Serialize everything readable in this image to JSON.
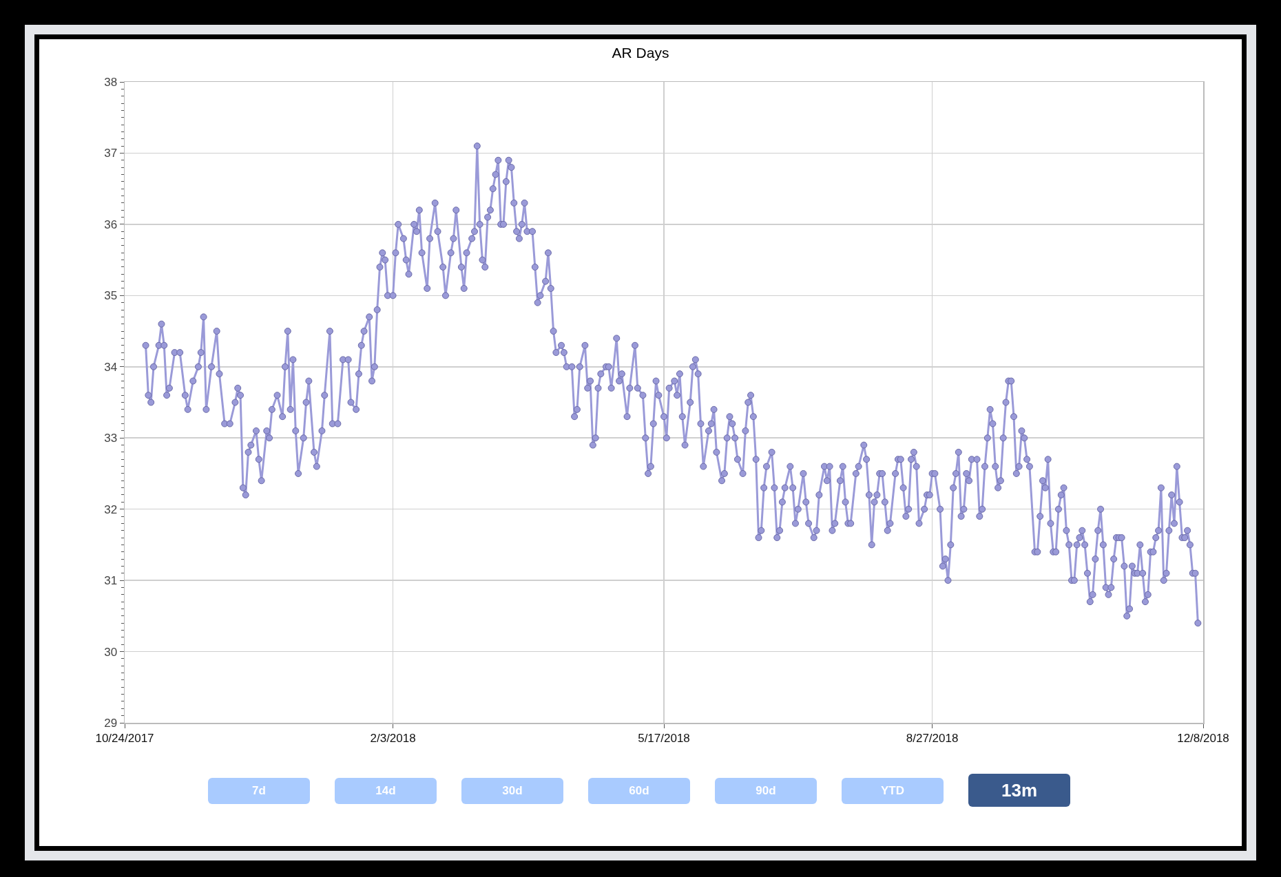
{
  "chart_data": {
    "type": "line",
    "title": "AR Days",
    "color": "#9a9ad8",
    "marker": "circle",
    "grid": true,
    "xlim": [
      "2017-10-24",
      "2018-12-08"
    ],
    "xticks": [
      {
        "value": "2017-10-24",
        "label": "10/24/2017"
      },
      {
        "value": "2018-02-03",
        "label": "2/3/2018"
      },
      {
        "value": "2018-05-17",
        "label": "5/17/2018"
      },
      {
        "value": "2018-08-27",
        "label": "8/27/2018"
      },
      {
        "value": "2018-12-08",
        "label": "12/8/2018"
      }
    ],
    "ylim": [
      29,
      38
    ],
    "yticks": [
      29,
      30,
      31,
      32,
      33,
      34,
      35,
      36,
      37,
      38
    ],
    "annotations": [
      "7d",
      "14d",
      "30d",
      "60d",
      "90d",
      "YTD",
      "13m"
    ],
    "x": [
      "2017-11-01",
      "2017-11-02",
      "2017-11-03",
      "2017-11-04",
      "2017-11-06",
      "2017-11-07",
      "2017-11-08",
      "2017-11-09",
      "2017-11-10",
      "2017-11-12",
      "2017-11-14",
      "2017-11-16",
      "2017-11-17",
      "2017-11-19",
      "2017-11-21",
      "2017-11-22",
      "2017-11-23",
      "2017-11-24",
      "2017-11-26",
      "2017-11-28",
      "2017-11-29",
      "2017-12-01",
      "2017-12-03",
      "2017-12-05",
      "2017-12-06",
      "2017-12-07",
      "2017-12-08",
      "2017-12-09",
      "2017-12-10",
      "2017-12-11",
      "2017-12-13",
      "2017-12-14",
      "2017-12-15",
      "2017-12-17",
      "2017-12-18",
      "2017-12-19",
      "2017-12-21",
      "2017-12-23",
      "2017-12-24",
      "2017-12-25",
      "2017-12-26",
      "2017-12-27",
      "2017-12-28",
      "2017-12-29",
      "2017-12-31",
      "2018-01-01",
      "2018-01-02",
      "2018-01-04",
      "2018-01-05",
      "2018-01-07",
      "2018-01-08",
      "2018-01-10",
      "2018-01-11",
      "2018-01-13",
      "2018-01-15",
      "2018-01-17",
      "2018-01-18",
      "2018-01-20",
      "2018-01-21",
      "2018-01-22",
      "2018-01-23",
      "2018-01-25",
      "2018-01-26",
      "2018-01-27",
      "2018-01-28",
      "2018-01-29",
      "2018-01-30",
      "2018-01-31",
      "2018-02-01",
      "2018-02-03",
      "2018-02-04",
      "2018-02-05",
      "2018-02-07",
      "2018-02-08",
      "2018-02-09",
      "2018-02-11",
      "2018-02-12",
      "2018-02-13",
      "2018-02-14",
      "2018-02-16",
      "2018-02-17",
      "2018-02-19",
      "2018-02-20",
      "2018-02-22",
      "2018-02-23",
      "2018-02-25",
      "2018-02-26",
      "2018-02-27",
      "2018-03-01",
      "2018-03-02",
      "2018-03-03",
      "2018-03-05",
      "2018-03-06",
      "2018-03-07",
      "2018-03-08",
      "2018-03-09",
      "2018-03-10",
      "2018-03-11",
      "2018-03-12",
      "2018-03-13",
      "2018-03-14",
      "2018-03-15",
      "2018-03-16",
      "2018-03-17",
      "2018-03-18",
      "2018-03-19",
      "2018-03-20",
      "2018-03-21",
      "2018-03-22",
      "2018-03-23",
      "2018-03-24",
      "2018-03-25",
      "2018-03-26",
      "2018-03-28",
      "2018-03-29",
      "2018-03-30",
      "2018-03-31",
      "2018-04-02",
      "2018-04-03",
      "2018-04-04",
      "2018-04-05",
      "2018-04-06",
      "2018-04-08",
      "2018-04-09",
      "2018-04-10",
      "2018-04-12",
      "2018-04-13",
      "2018-04-14",
      "2018-04-15",
      "2018-04-17",
      "2018-04-18",
      "2018-04-19",
      "2018-04-20",
      "2018-04-21",
      "2018-04-22",
      "2018-04-23",
      "2018-04-25",
      "2018-04-26",
      "2018-04-27",
      "2018-04-29",
      "2018-04-30",
      "2018-05-01",
      "2018-05-03",
      "2018-05-04",
      "2018-05-06",
      "2018-05-07",
      "2018-05-09",
      "2018-05-10",
      "2018-05-11",
      "2018-05-12",
      "2018-05-13",
      "2018-05-14",
      "2018-05-15",
      "2018-05-17",
      "2018-05-18",
      "2018-05-19",
      "2018-05-21",
      "2018-05-22",
      "2018-05-23",
      "2018-05-24",
      "2018-05-25",
      "2018-05-27",
      "2018-05-28",
      "2018-05-29",
      "2018-05-30",
      "2018-05-31",
      "2018-06-01",
      "2018-06-03",
      "2018-06-04",
      "2018-06-05",
      "2018-06-06",
      "2018-06-08",
      "2018-06-09",
      "2018-06-10",
      "2018-06-11",
      "2018-06-12",
      "2018-06-13",
      "2018-06-14",
      "2018-06-16",
      "2018-06-17",
      "2018-06-18",
      "2018-06-19",
      "2018-06-20",
      "2018-06-21",
      "2018-06-22",
      "2018-06-23",
      "2018-06-24",
      "2018-06-25",
      "2018-06-27",
      "2018-06-28",
      "2018-06-29",
      "2018-06-30",
      "2018-07-01",
      "2018-07-02",
      "2018-07-04",
      "2018-07-05",
      "2018-07-06",
      "2018-07-07",
      "2018-07-09",
      "2018-07-10",
      "2018-07-11",
      "2018-07-13",
      "2018-07-14",
      "2018-07-15",
      "2018-07-17",
      "2018-07-18",
      "2018-07-19",
      "2018-07-20",
      "2018-07-21",
      "2018-07-23",
      "2018-07-24",
      "2018-07-25",
      "2018-07-26",
      "2018-07-27",
      "2018-07-29",
      "2018-07-30",
      "2018-08-01",
      "2018-08-02",
      "2018-08-03",
      "2018-08-04",
      "2018-08-05",
      "2018-08-06",
      "2018-08-07",
      "2018-08-08",
      "2018-08-09",
      "2018-08-10",
      "2018-08-11",
      "2018-08-13",
      "2018-08-14",
      "2018-08-15",
      "2018-08-16",
      "2018-08-17",
      "2018-08-18",
      "2018-08-19",
      "2018-08-20",
      "2018-08-21",
      "2018-08-22",
      "2018-08-24",
      "2018-08-25",
      "2018-08-26",
      "2018-08-27",
      "2018-08-28",
      "2018-08-30",
      "2018-08-31",
      "2018-09-01",
      "2018-09-02",
      "2018-09-03",
      "2018-09-04",
      "2018-09-05",
      "2018-09-06",
      "2018-09-07",
      "2018-09-08",
      "2018-09-09",
      "2018-09-10",
      "2018-09-11",
      "2018-09-13",
      "2018-09-14",
      "2018-09-15",
      "2018-09-16",
      "2018-09-17",
      "2018-09-18",
      "2018-09-19",
      "2018-09-20",
      "2018-09-21",
      "2018-09-22",
      "2018-09-23",
      "2018-09-24",
      "2018-09-25",
      "2018-09-26",
      "2018-09-27",
      "2018-09-28",
      "2018-09-29",
      "2018-09-30",
      "2018-10-01",
      "2018-10-02",
      "2018-10-03",
      "2018-10-05",
      "2018-10-06",
      "2018-10-07",
      "2018-10-08",
      "2018-10-09",
      "2018-10-10",
      "2018-10-11",
      "2018-10-12",
      "2018-10-13",
      "2018-10-14",
      "2018-10-15",
      "2018-10-16",
      "2018-10-17",
      "2018-10-18",
      "2018-10-19",
      "2018-10-20",
      "2018-10-21",
      "2018-10-22",
      "2018-10-23",
      "2018-10-24",
      "2018-10-25",
      "2018-10-26",
      "2018-10-27",
      "2018-10-28",
      "2018-10-29",
      "2018-10-30",
      "2018-10-31",
      "2018-11-01",
      "2018-11-02",
      "2018-11-03",
      "2018-11-04",
      "2018-11-05",
      "2018-11-06",
      "2018-11-07",
      "2018-11-08",
      "2018-11-09",
      "2018-11-10",
      "2018-11-11",
      "2018-11-12",
      "2018-11-13",
      "2018-11-14",
      "2018-11-15",
      "2018-11-16",
      "2018-11-17",
      "2018-11-18",
      "2018-11-19",
      "2018-11-20",
      "2018-11-21",
      "2018-11-22",
      "2018-11-23",
      "2018-11-24",
      "2018-11-25",
      "2018-11-26",
      "2018-11-27",
      "2018-11-28",
      "2018-11-29",
      "2018-11-30",
      "2018-12-01",
      "2018-12-02",
      "2018-12-03",
      "2018-12-04",
      "2018-12-05",
      "2018-12-06"
    ],
    "values": [
      34.3,
      33.6,
      33.5,
      34.0,
      34.3,
      34.6,
      34.3,
      33.6,
      33.7,
      34.2,
      34.2,
      33.6,
      33.4,
      33.8,
      34.0,
      34.2,
      34.7,
      33.4,
      34.0,
      34.5,
      33.9,
      33.2,
      33.2,
      33.5,
      33.7,
      33.6,
      32.3,
      32.2,
      32.8,
      32.9,
      33.1,
      32.7,
      32.4,
      33.1,
      33.0,
      33.4,
      33.6,
      33.3,
      34.0,
      34.5,
      33.4,
      34.1,
      33.1,
      32.5,
      33.0,
      33.5,
      33.8,
      32.8,
      32.6,
      33.1,
      33.6,
      34.5,
      33.2,
      33.2,
      34.1,
      34.1,
      33.5,
      33.4,
      33.9,
      34.3,
      34.5,
      34.7,
      33.8,
      34.0,
      34.8,
      35.4,
      35.6,
      35.5,
      35.0,
      35.0,
      35.6,
      36.0,
      35.8,
      35.5,
      35.3,
      36.0,
      35.9,
      36.2,
      35.6,
      35.1,
      35.8,
      36.3,
      35.9,
      35.4,
      35.0,
      35.6,
      35.8,
      36.2,
      35.4,
      35.1,
      35.6,
      35.8,
      35.9,
      37.1,
      36.0,
      35.5,
      35.4,
      36.1,
      36.2,
      36.5,
      36.7,
      36.9,
      36.0,
      36.0,
      36.6,
      36.9,
      36.8,
      36.3,
      35.9,
      35.8,
      36.0,
      36.3,
      35.9,
      35.9,
      35.4,
      34.9,
      35.0,
      35.2,
      35.6,
      35.1,
      34.5,
      34.2,
      34.3,
      34.2,
      34.0,
      34.0,
      33.3,
      33.4,
      34.0,
      34.3,
      33.7,
      33.8,
      32.9,
      33.0,
      33.7,
      33.9,
      34.0,
      34.0,
      33.7,
      34.4,
      33.8,
      33.9,
      33.3,
      33.7,
      34.3,
      33.7,
      33.6,
      33.0,
      32.5,
      32.6,
      33.2,
      33.8,
      33.6,
      33.3,
      33.0,
      33.7,
      33.8,
      33.6,
      33.9,
      33.3,
      32.9,
      33.5,
      34.0,
      34.1,
      33.9,
      33.2,
      32.6,
      33.1,
      33.2,
      33.4,
      32.8,
      32.4,
      32.5,
      33.0,
      33.3,
      33.2,
      33.0,
      32.7,
      32.5,
      33.1,
      33.5,
      33.6,
      33.3,
      32.7,
      31.6,
      31.7,
      32.3,
      32.6,
      32.8,
      32.3,
      31.6,
      31.7,
      32.1,
      32.3,
      32.6,
      32.3,
      31.8,
      32.0,
      32.5,
      32.1,
      31.8,
      31.6,
      31.7,
      32.2,
      32.6,
      32.4,
      32.6,
      31.7,
      31.8,
      32.4,
      32.6,
      32.1,
      31.8,
      31.8,
      32.5,
      32.6,
      32.9,
      32.7,
      32.2,
      31.5,
      32.1,
      32.2,
      32.5,
      32.5,
      32.1,
      31.7,
      31.8,
      32.5,
      32.7,
      32.7,
      32.3,
      31.9,
      32.0,
      32.7,
      32.8,
      32.6,
      31.8,
      32.0,
      32.2,
      32.2,
      32.5,
      32.5,
      32.0,
      31.2,
      31.3,
      31.0,
      31.5,
      32.3,
      32.5,
      32.8,
      31.9,
      32.0,
      32.5,
      32.4,
      32.7,
      32.7,
      31.9,
      32.0,
      32.6,
      33.0,
      33.4,
      33.2,
      32.6,
      32.3,
      32.4,
      33.0,
      33.5,
      33.8,
      33.8,
      33.3,
      32.5,
      32.6,
      33.1,
      33.0,
      32.7,
      32.6,
      31.4,
      31.4,
      31.9,
      32.4,
      32.3,
      32.7,
      31.8,
      31.4,
      31.4,
      32.0,
      32.2,
      32.3,
      31.7,
      31.5,
      31.0,
      31.0,
      31.5,
      31.6,
      31.7,
      31.5,
      31.1,
      30.7,
      30.8,
      31.3,
      31.7,
      32.0,
      31.5,
      30.9,
      30.8,
      30.9,
      31.3,
      31.6,
      31.6,
      31.6,
      31.2,
      30.5,
      30.6,
      31.2,
      31.1,
      31.1,
      31.5,
      31.1,
      30.7,
      30.8,
      31.4,
      31.4,
      31.6,
      31.7,
      32.3,
      31.0,
      31.1,
      31.7,
      32.2,
      31.8,
      32.6,
      32.1,
      31.6,
      31.6,
      31.7,
      31.5,
      31.1,
      31.1,
      30.4
    ]
  }
}
